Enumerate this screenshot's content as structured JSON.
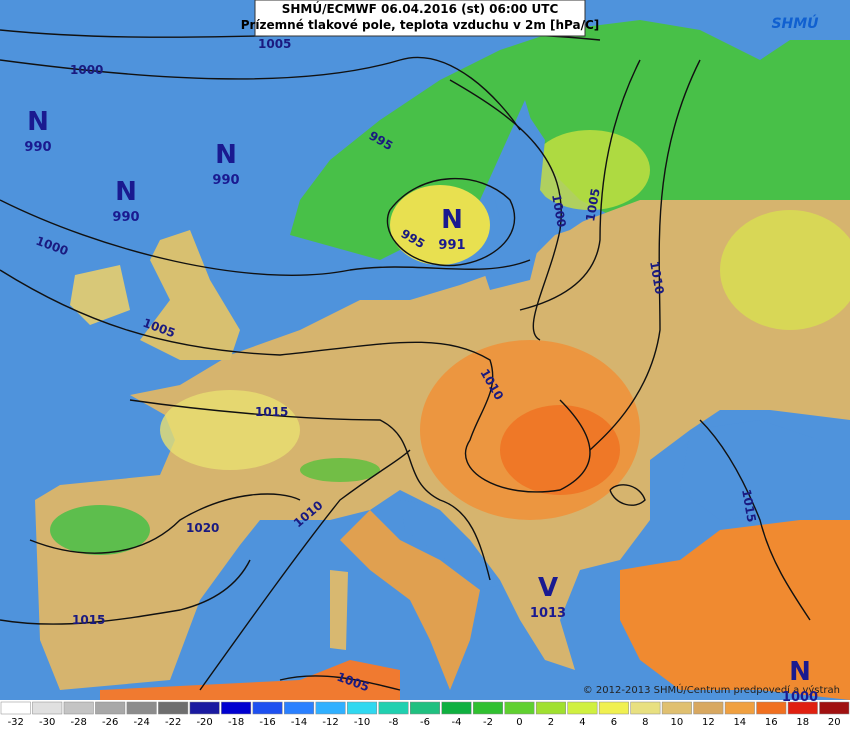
{
  "header": {
    "line1": "SHMÚ/ECMWF 06.04.2016 (st) 06:00 UTC",
    "line2": "Prízemné tlakové pole, teplota vzduchu v 2m [hPa/C]"
  },
  "logo": "SHMÚ",
  "pressure_centers": [
    {
      "type": "N",
      "value": 990
    },
    {
      "type": "N",
      "value": 990
    },
    {
      "type": "N",
      "value": 990
    },
    {
      "type": "N",
      "value": 991
    },
    {
      "type": "V",
      "value": 1013
    },
    {
      "type": "N",
      "value": 1000
    }
  ],
  "isobar_labels": [
    1005,
    1000,
    995,
    1000,
    995,
    1000,
    1005,
    1010,
    1005,
    1010,
    1015,
    1020,
    1010,
    1015,
    1015,
    1005
  ],
  "legend": {
    "values": [
      -32,
      -30,
      -28,
      -26,
      -24,
      -22,
      -20,
      -18,
      -16,
      -14,
      -12,
      -10,
      -8,
      -6,
      -4,
      -2,
      0,
      2,
      4,
      6,
      8,
      10,
      12,
      14,
      16,
      18,
      20
    ],
    "colors": [
      "#ffffff",
      "#e0e0e0",
      "#c4c4c4",
      "#a8a8a8",
      "#8c8c8c",
      "#6e6e6e",
      "#1a1aa0",
      "#0000d0",
      "#1e50f0",
      "#2a80ff",
      "#30b0ff",
      "#30d8f0",
      "#20d0b0",
      "#20c080",
      "#10b040",
      "#30c030",
      "#60d030",
      "#a0e030",
      "#d0f040",
      "#f0f050",
      "#e8e080",
      "#e0c070",
      "#d8a860",
      "#f0a040",
      "#f07020",
      "#e02010",
      "#a01010"
    ]
  },
  "copyright": "© 2012-2013 SHMÚ/Centrum predpovedí a výstrah"
}
